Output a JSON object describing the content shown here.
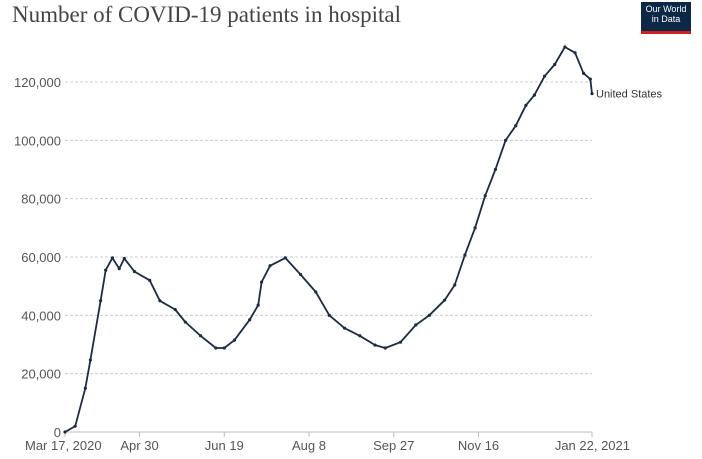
{
  "chart_data": {
    "type": "line",
    "title": "Number of COVID-19 patients in hospital",
    "xlabel": "",
    "ylabel": "",
    "xlim": [
      "2020-03-17",
      "2021-01-22"
    ],
    "ylim": [
      0,
      130000
    ],
    "x_ticks": [
      {
        "date": "2020-03-17",
        "label": "Mar 17, 2020"
      },
      {
        "date": "2020-04-30",
        "label": "Apr 30"
      },
      {
        "date": "2020-06-19",
        "label": "Jun 19"
      },
      {
        "date": "2020-08-08",
        "label": "Aug 8"
      },
      {
        "date": "2020-09-27",
        "label": "Sep 27"
      },
      {
        "date": "2020-11-16",
        "label": "Nov 16"
      },
      {
        "date": "2021-01-22",
        "label": "Jan 22, 2021"
      }
    ],
    "y_ticks": [
      {
        "value": 0,
        "label": "0"
      },
      {
        "value": 20000,
        "label": "20,000"
      },
      {
        "value": 40000,
        "label": "40,000"
      },
      {
        "value": 60000,
        "label": "60,000"
      },
      {
        "value": 80000,
        "label": "80,000"
      },
      {
        "value": 100000,
        "label": "100,000"
      },
      {
        "value": 120000,
        "label": "120,000"
      }
    ],
    "grid": "horizontal dashed",
    "series": [
      {
        "name": "United States",
        "color": "#1d2b44",
        "points": [
          [
            "2020-03-17",
            0
          ],
          [
            "2020-03-23",
            2000
          ],
          [
            "2020-03-29",
            15000
          ],
          [
            "2020-04-01",
            24700
          ],
          [
            "2020-04-07",
            45000
          ],
          [
            "2020-04-10",
            55500
          ],
          [
            "2020-04-14",
            59700
          ],
          [
            "2020-04-18",
            56000
          ],
          [
            "2020-04-21",
            59500
          ],
          [
            "2020-04-27",
            55000
          ],
          [
            "2020-05-06",
            52000
          ],
          [
            "2020-05-12",
            45000
          ],
          [
            "2020-05-21",
            42000
          ],
          [
            "2020-05-27",
            37700
          ],
          [
            "2020-06-05",
            33000
          ],
          [
            "2020-06-14",
            28800
          ],
          [
            "2020-06-19",
            28800
          ],
          [
            "2020-06-25",
            31500
          ],
          [
            "2020-07-04",
            38500
          ],
          [
            "2020-07-09",
            43500
          ],
          [
            "2020-07-11",
            51400
          ],
          [
            "2020-07-16",
            57000
          ],
          [
            "2020-07-25",
            59700
          ],
          [
            "2020-08-03",
            54000
          ],
          [
            "2020-08-12",
            48000
          ],
          [
            "2020-08-20",
            40000
          ],
          [
            "2020-08-29",
            35600
          ],
          [
            "2020-09-07",
            33000
          ],
          [
            "2020-09-16",
            29800
          ],
          [
            "2020-09-22",
            28800
          ],
          [
            "2020-10-01",
            30800
          ],
          [
            "2020-10-10",
            36700
          ],
          [
            "2020-10-18",
            40000
          ],
          [
            "2020-10-27",
            45200
          ],
          [
            "2020-11-02",
            50400
          ],
          [
            "2020-11-08",
            60700
          ],
          [
            "2020-11-14",
            70000
          ],
          [
            "2020-11-20",
            81000
          ],
          [
            "2020-11-26",
            90000
          ],
          [
            "2020-12-02",
            100000
          ],
          [
            "2020-12-08",
            105000
          ],
          [
            "2020-12-14",
            112000
          ],
          [
            "2020-12-19",
            115500
          ],
          [
            "2020-12-25",
            122000
          ],
          [
            "2020-12-31",
            126000
          ],
          [
            "2021-01-06",
            132000
          ],
          [
            "2021-01-12",
            130000
          ],
          [
            "2021-01-17",
            123000
          ],
          [
            "2021-01-21",
            121000
          ],
          [
            "2021-01-22",
            116000
          ]
        ]
      }
    ]
  },
  "logo": {
    "line1": "Our World",
    "line2": "in Data",
    "bg": "#0d2747",
    "accent": "#d11e1e"
  }
}
